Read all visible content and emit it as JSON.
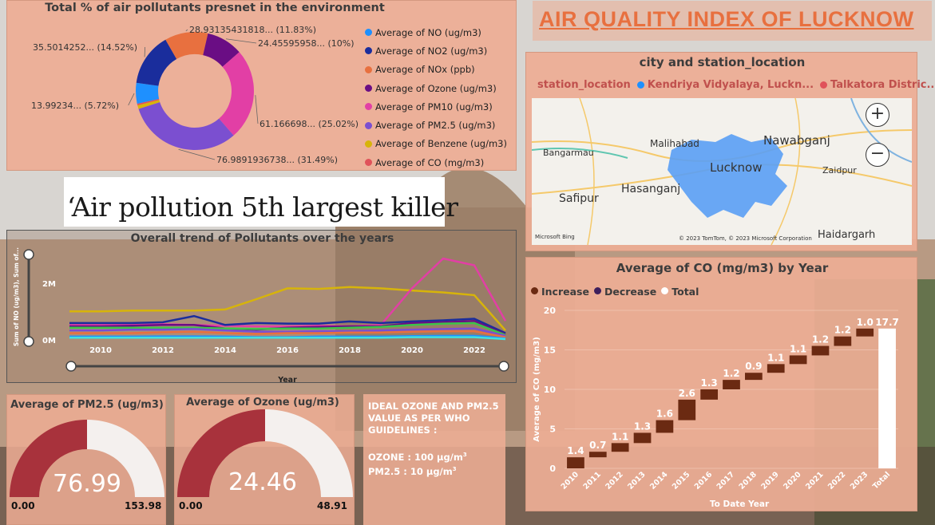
{
  "header": {
    "title": "AIR QUALITY INDEX OF LUCKNOW"
  },
  "headline": {
    "text": "‘Air pollution 5th largest killer"
  },
  "donut": {
    "title": "Total % of air pollutants presnet in the environment",
    "segments": [
      {
        "name": "Average of NO (ug/m3)",
        "label": "13.99234... (5.72%)",
        "percent": 5.72,
        "color": "#1e90ff"
      },
      {
        "name": "Average of NO2 (ug/m3)",
        "label": "35.5014252... (14.52%)",
        "percent": 14.52,
        "color": "#1a2d9c"
      },
      {
        "name": "Average of NOx (ppb)",
        "label": "28.93135431818... (11.83%)",
        "percent": 11.83,
        "color": "#e8703f"
      },
      {
        "name": "Average of Ozone (ug/m3)",
        "label": "24.45595958... (10%)",
        "percent": 10.0,
        "color": "#6a0d84"
      },
      {
        "name": "Average of PM10 (ug/m3)",
        "label": "61.166698... (25.02%)",
        "percent": 25.02,
        "color": "#e23fa5"
      },
      {
        "name": "Average of PM2.5 (ug/m3)",
        "label": "76.9891936738... (31.49%)",
        "percent": 31.49,
        "color": "#7b4fd0"
      },
      {
        "name": "Average of Benzene (ug/m3)",
        "label": "",
        "percent": 1.0,
        "color": "#d7b40a"
      },
      {
        "name": "Average of CO (mg/m3)",
        "label": "",
        "percent": 0.42,
        "color": "#e0525a"
      }
    ]
  },
  "map": {
    "title": "city and station_location",
    "legend_label": "station_location",
    "stations": [
      {
        "name": "Kendriya Vidyalaya, Luckn...",
        "color": "#1e90ff"
      },
      {
        "name": "Talkatora Distric...",
        "color": "#e0525a"
      }
    ],
    "places": {
      "malihabad": "Malihabad",
      "nawabganj": "Nawabganj",
      "bangarmau": "Bangarmau",
      "lucknow": "Lucknow",
      "zaidpur": "Zaidpur",
      "safipur": "Safipur",
      "hasanganj": "Hasanganj",
      "haidargarh": "Haidargarh"
    },
    "attribution": "© 2023 TomTom, © 2023 Microsoft Corporation",
    "bing": "Microsoft Bing",
    "zoom_in": "+",
    "zoom_out": "−"
  },
  "trend": {
    "title": "Overall trend of Pollutants over the years",
    "ylabel": "Sum of NO (ug/m3), Sum of...",
    "xlabel": "Year",
    "y_ticks": [
      "0M",
      "2M"
    ],
    "x_ticks": [
      "2010",
      "2012",
      "2014",
      "2016",
      "2018",
      "2020",
      "2022"
    ]
  },
  "gauge_pm25": {
    "title": "Average of PM2.5 (ug/m3)",
    "value": "76.99",
    "min": "0.00",
    "max": "153.98",
    "fraction": 0.5,
    "color": "#a8323c"
  },
  "gauge_ozone": {
    "title": "Average of Ozone (ug/m3)",
    "value": "24.46",
    "min": "0.00",
    "max": "48.91",
    "fraction": 0.5,
    "color": "#a8323c"
  },
  "who": {
    "line1": "IDEAL OZONE AND PM2.5 VALUE AS PER WHO GUIDELINES :",
    "ozone": "OZONE : 100 µg/m",
    "pm25": "PM2.5 : 10 µg/m",
    "exp": "3"
  },
  "waterfall": {
    "title": "Average of CO (mg/m3) by Year",
    "legend": [
      {
        "name": "Increase",
        "color": "#6b2a12"
      },
      {
        "name": "Decrease",
        "color": "#3d1f5c"
      },
      {
        "name": "Total",
        "color": "#ffffff"
      }
    ]
  },
  "chart_data": [
    {
      "type": "waterfall",
      "title": "Average of CO (mg/m3) by Year",
      "xlabel": "To Date Year",
      "ylabel": "Average of CO (mg/m3)",
      "categories": [
        "2010",
        "2011",
        "2012",
        "2013",
        "2014",
        "2015",
        "2016",
        "2017",
        "2018",
        "2019",
        "2020",
        "2021",
        "2022",
        "2023",
        "Total"
      ],
      "values": [
        1.4,
        0.7,
        1.1,
        1.3,
        1.6,
        2.6,
        1.3,
        1.2,
        0.9,
        1.1,
        1.1,
        1.2,
        1.2,
        1.0,
        17.7
      ],
      "data_labels": [
        "1.4",
        "0.7",
        "1.1",
        "1.3",
        "1.6",
        "2.6",
        "1.3",
        "1.2",
        "0.9",
        "1.1",
        "1.1",
        "1.2",
        "1.2",
        "1.0",
        "17.7"
      ],
      "y_ticks": [
        0,
        5,
        10,
        15,
        20
      ],
      "ylim": [
        0,
        20
      ],
      "legend": [
        "Increase",
        "Decrease",
        "Total"
      ],
      "legend_position": "top-left"
    },
    {
      "type": "line",
      "title": "Overall trend of Pollutants over the years",
      "xlabel": "Year",
      "ylabel": "Sum of NO (ug/m3), Sum of...",
      "x": [
        2009,
        2010,
        2011,
        2012,
        2013,
        2014,
        2015,
        2016,
        2017,
        2018,
        2019,
        2020,
        2021,
        2022,
        2023
      ],
      "y_ticks": [
        "0M",
        "2M"
      ],
      "series": [
        {
          "color": "#d7b40a",
          "values": [
            1.05,
            1.05,
            1.08,
            1.08,
            1.08,
            1.12,
            1.5,
            1.9,
            1.88,
            1.95,
            1.9,
            1.82,
            1.75,
            1.65,
            0.35
          ]
        },
        {
          "color": "#e23fa5",
          "values": [
            0.55,
            0.55,
            0.55,
            0.58,
            0.55,
            0.52,
            0.5,
            0.5,
            0.52,
            0.5,
            0.55,
            1.9,
            3.0,
            2.75,
            0.7
          ]
        },
        {
          "color": "#1a2d9c",
          "values": [
            0.62,
            0.62,
            0.62,
            0.65,
            0.88,
            0.55,
            0.62,
            0.6,
            0.6,
            0.68,
            0.62,
            0.68,
            0.72,
            0.78,
            0.25
          ]
        },
        {
          "color": "#6a0d84",
          "values": [
            0.5,
            0.5,
            0.52,
            0.55,
            0.55,
            0.42,
            0.38,
            0.45,
            0.48,
            0.5,
            0.5,
            0.62,
            0.65,
            0.7,
            0.2
          ]
        },
        {
          "color": "#3cc44a",
          "values": [
            0.45,
            0.45,
            0.45,
            0.45,
            0.45,
            0.42,
            0.4,
            0.42,
            0.42,
            0.45,
            0.48,
            0.55,
            0.6,
            0.62,
            0.18
          ]
        },
        {
          "color": "#7b4fd0",
          "values": [
            0.35,
            0.35,
            0.38,
            0.38,
            0.4,
            0.35,
            0.3,
            0.3,
            0.32,
            0.32,
            0.35,
            0.38,
            0.4,
            0.42,
            0.15
          ]
        },
        {
          "color": "#e8703f",
          "values": [
            0.25,
            0.25,
            0.25,
            0.28,
            0.3,
            0.25,
            0.22,
            0.25,
            0.25,
            0.27,
            0.27,
            0.3,
            0.32,
            0.32,
            0.1
          ]
        },
        {
          "color": "#1e90ff",
          "values": [
            0.12,
            0.12,
            0.12,
            0.13,
            0.13,
            0.12,
            0.1,
            0.1,
            0.12,
            0.12,
            0.12,
            0.14,
            0.15,
            0.15,
            0.05
          ]
        },
        {
          "color": "#40e0e0",
          "values": [
            0.08,
            0.08,
            0.08,
            0.08,
            0.08,
            0.08,
            0.08,
            0.08,
            0.08,
            0.08,
            0.08,
            0.1,
            0.1,
            0.1,
            0.03
          ]
        }
      ]
    },
    {
      "type": "pie",
      "title": "Total % of air pollutants presnet in the environment",
      "categories": [
        "Average of NO (ug/m3)",
        "Average of NO2 (ug/m3)",
        "Average of NOx (ppb)",
        "Average of Ozone (ug/m3)",
        "Average of PM10 (ug/m3)",
        "Average of PM2.5 (ug/m3)",
        "Average of Benzene (ug/m3)",
        "Average of CO (mg/m3)"
      ],
      "values": [
        13.99234,
        35.5014252,
        28.93135431818,
        24.45595958,
        61.166698,
        76.9891936738,
        2.4,
        1.0
      ],
      "legend_position": "right"
    }
  ]
}
